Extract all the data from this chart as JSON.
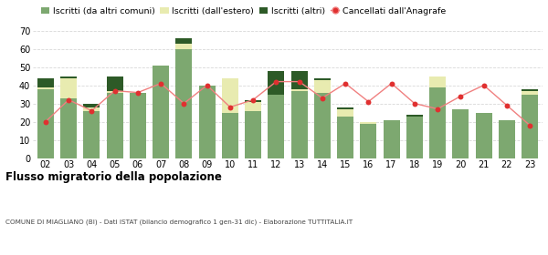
{
  "years": [
    "02",
    "03",
    "04",
    "05",
    "06",
    "07",
    "08",
    "09",
    "10",
    "11",
    "12",
    "13",
    "14",
    "15",
    "16",
    "17",
    "18",
    "19",
    "20",
    "21",
    "22",
    "23"
  ],
  "iscritti_comuni": [
    38,
    33,
    26,
    36,
    36,
    51,
    60,
    40,
    25,
    26,
    35,
    37,
    36,
    23,
    19,
    21,
    23,
    39,
    27,
    25,
    21,
    35
  ],
  "iscritti_estero": [
    1,
    11,
    2,
    1,
    0,
    0,
    3,
    0,
    19,
    5,
    0,
    1,
    7,
    4,
    1,
    0,
    0,
    6,
    0,
    0,
    0,
    2
  ],
  "iscritti_altri": [
    5,
    1,
    2,
    8,
    0,
    0,
    3,
    0,
    0,
    1,
    13,
    10,
    1,
    1,
    0,
    0,
    1,
    0,
    0,
    0,
    0,
    1
  ],
  "cancellati": [
    20,
    32,
    26,
    37,
    36,
    41,
    30,
    40,
    28,
    32,
    42,
    42,
    33,
    41,
    31,
    41,
    30,
    27,
    34,
    40,
    29,
    18
  ],
  "color_comuni": "#7da870",
  "color_estero": "#e8ebb0",
  "color_altri": "#2d5a27",
  "color_cancellati": "#e03030",
  "color_cancellati_line": "#f08080",
  "ylim": [
    0,
    70
  ],
  "yticks": [
    0,
    10,
    20,
    30,
    40,
    50,
    60,
    70
  ],
  "title": "Flusso migratorio della popolazione",
  "subtitle": "COMUNE DI MIAGLIANO (BI) - Dati ISTAT (bilancio demografico 1 gen-31 dic) - Elaborazione TUTTITALIA.IT",
  "legend_labels": [
    "Iscritti (da altri comuni)",
    "Iscritti (dall'estero)",
    "Iscritti (altri)",
    "Cancellati dall'Anagrafe"
  ],
  "bg_color": "#ffffff",
  "grid_color": "#d8d8d8"
}
